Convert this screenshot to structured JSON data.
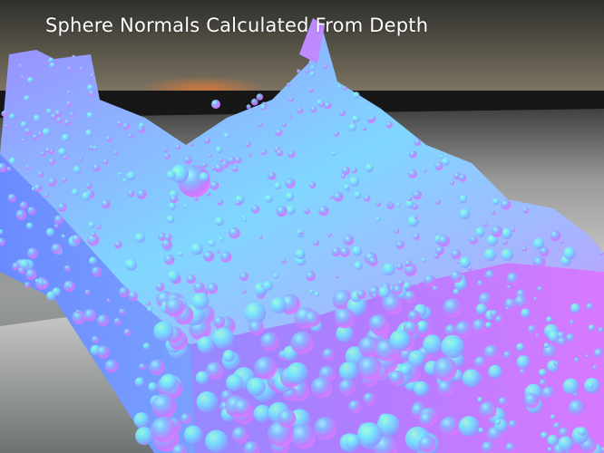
{
  "caption": "Sphere Normals Calculated From Depth",
  "scene": {
    "content": "particle fluid rendered as spheres colored by surface normals",
    "colors": {
      "sky_top": "#3b3b37",
      "sky_mid": "#6e6a5c",
      "sunset_glow": "#c0703a",
      "horizon_water": "#1c1c1c",
      "floor_light": "#d9d9d9",
      "floor_dark": "#5a6060",
      "normal_magenta": "#d77aff",
      "normal_blue": "#7f8fff",
      "normal_cyan": "#6fe0ff",
      "normal_green": "#70ffb0",
      "normal_violet": "#b890ff"
    }
  }
}
